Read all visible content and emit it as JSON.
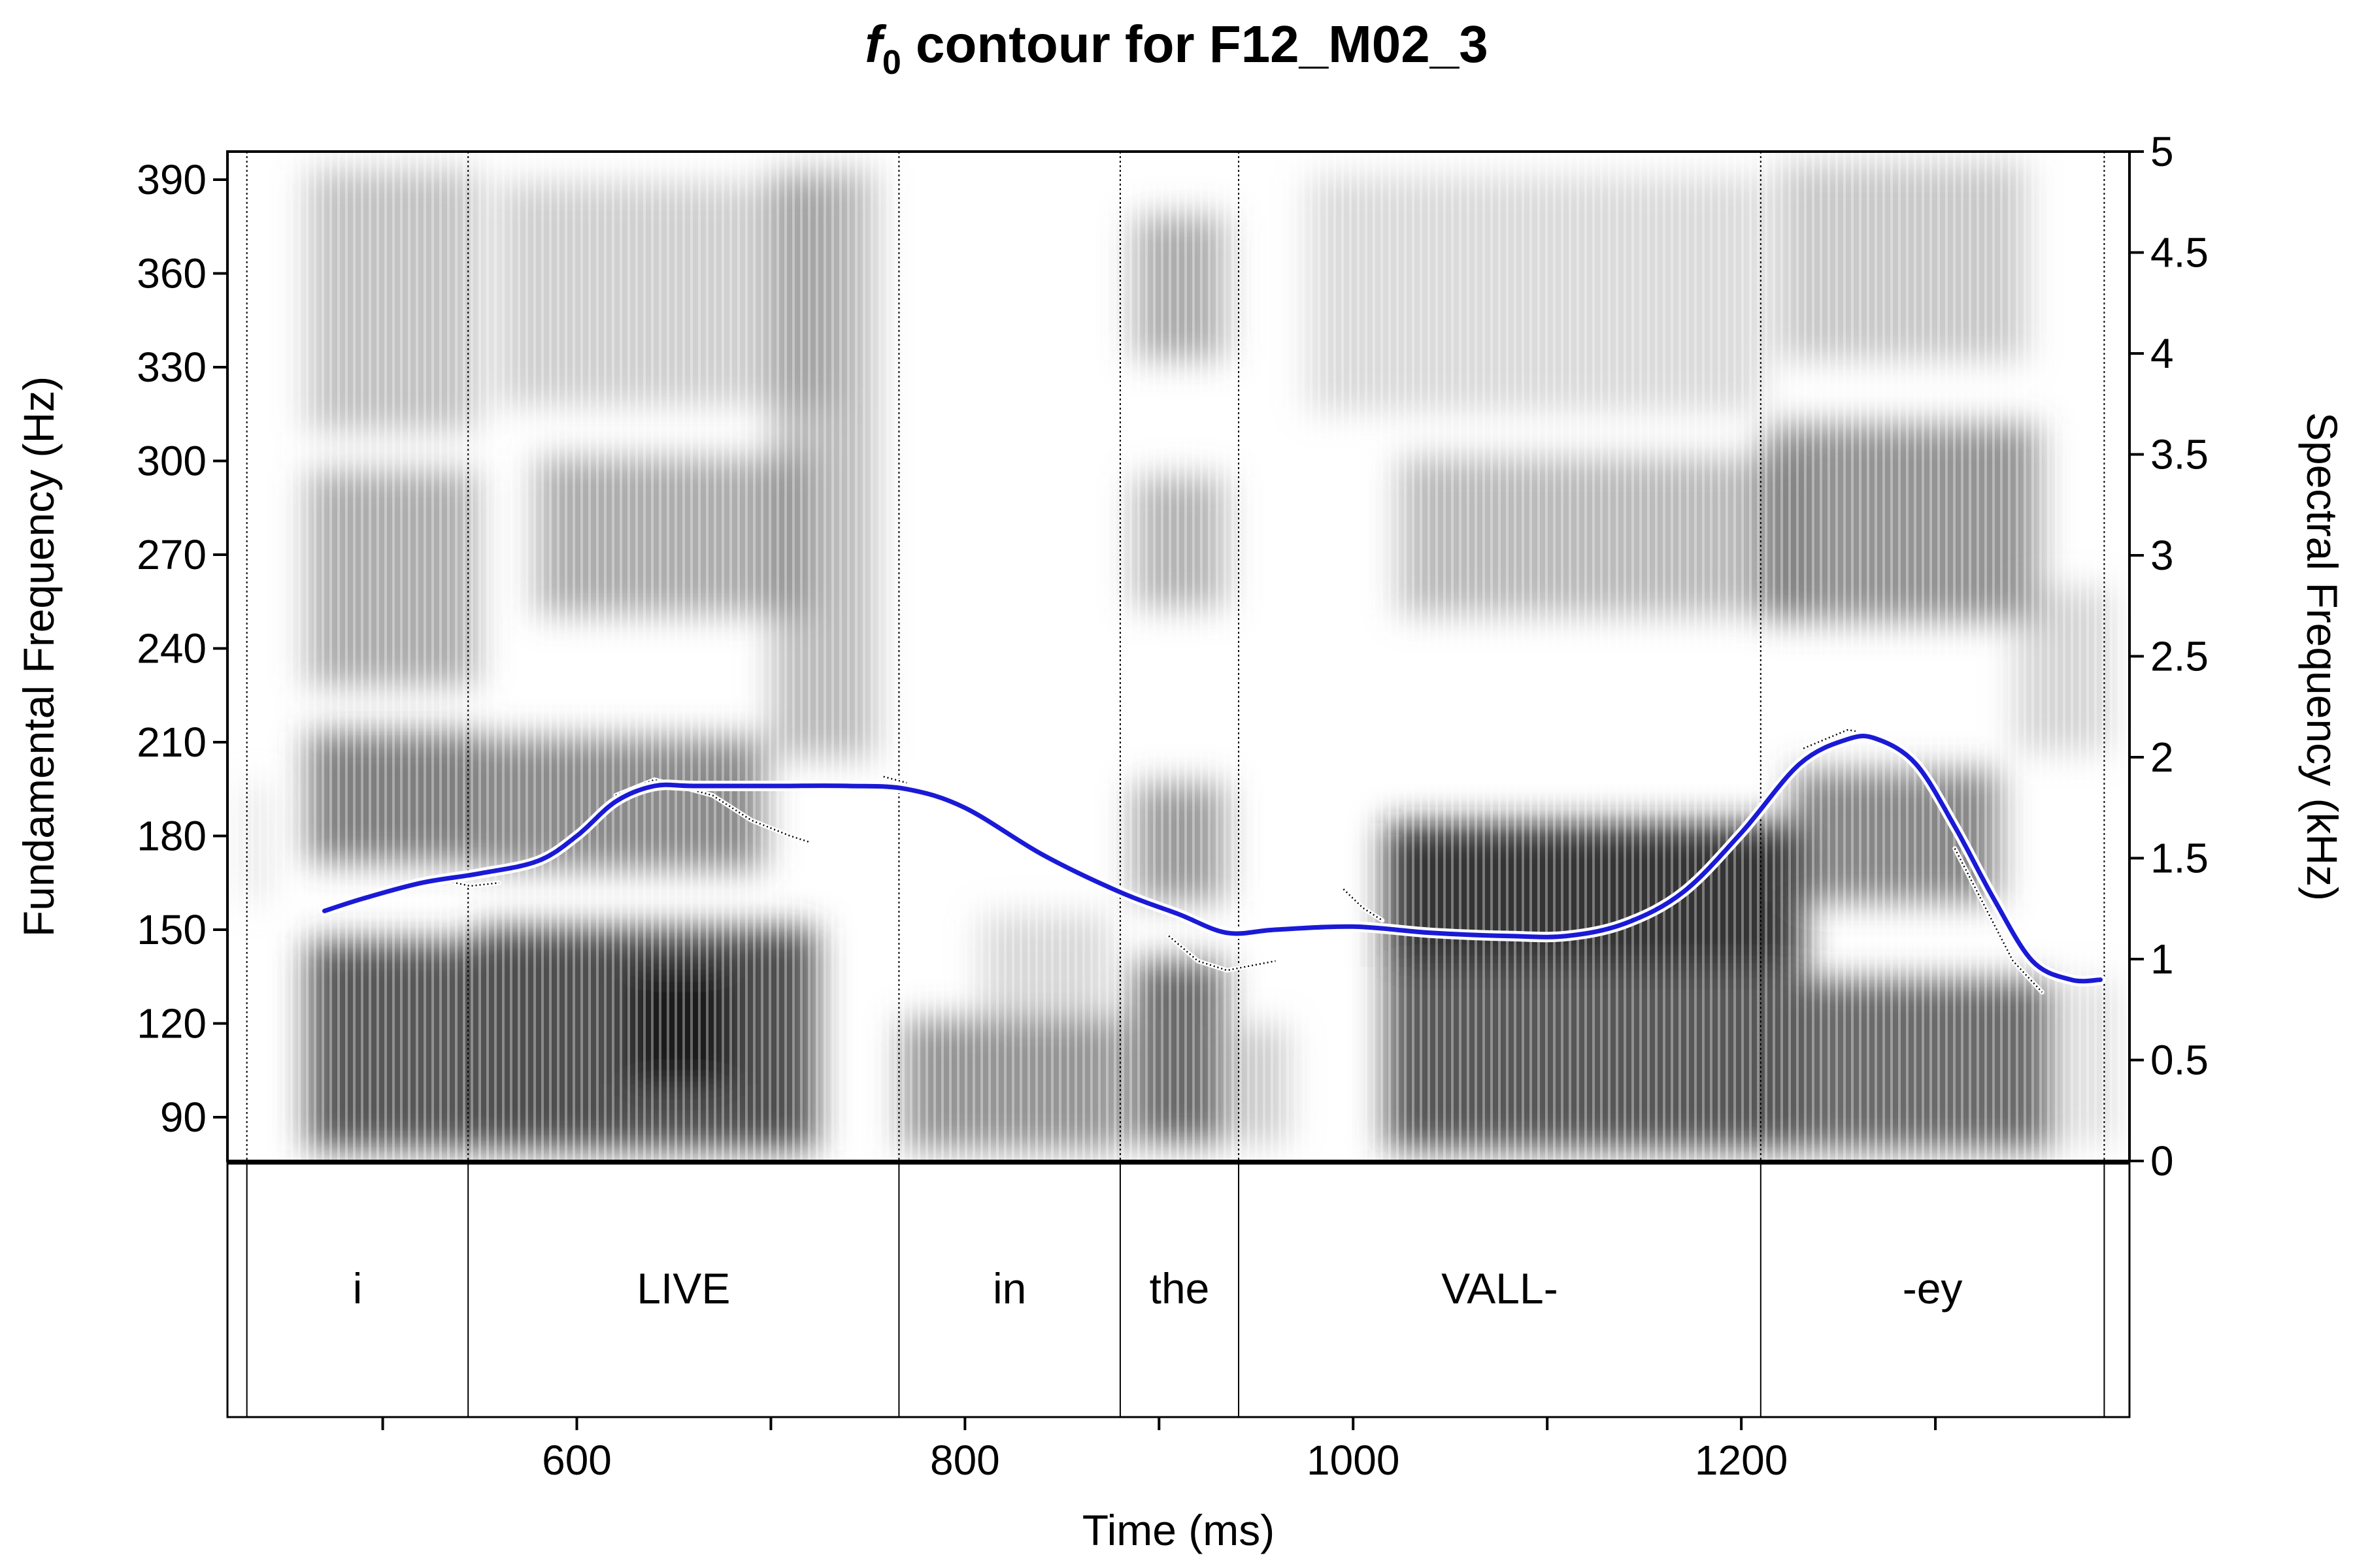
{
  "chart_data": {
    "type": "line",
    "title_italic": "f",
    "title_sub": "0",
    "title_rest": " contour for F12_M02_3",
    "xlabel": "Time (ms)",
    "ylabel_left": "Fundamental Frequency (Hz)",
    "ylabel_right": "Spectral Frequency (kHz)",
    "xlim": [
      420,
      1400
    ],
    "ylim_left": [
      76,
      399
    ],
    "ylim_right": [
      0,
      5
    ],
    "x_ticks": [
      {
        "value": 500,
        "label": ""
      },
      {
        "value": 600,
        "label": "600"
      },
      {
        "value": 700,
        "label": ""
      },
      {
        "value": 800,
        "label": "800"
      },
      {
        "value": 900,
        "label": ""
      },
      {
        "value": 1000,
        "label": "1000"
      },
      {
        "value": 1100,
        "label": ""
      },
      {
        "value": 1200,
        "label": "1200"
      },
      {
        "value": 1300,
        "label": ""
      }
    ],
    "y_ticks_left": [
      {
        "value": 90,
        "label": "90"
      },
      {
        "value": 120,
        "label": "120"
      },
      {
        "value": 150,
        "label": "150"
      },
      {
        "value": 180,
        "label": "180"
      },
      {
        "value": 210,
        "label": "210"
      },
      {
        "value": 240,
        "label": "240"
      },
      {
        "value": 270,
        "label": "270"
      },
      {
        "value": 300,
        "label": "300"
      },
      {
        "value": 330,
        "label": "330"
      },
      {
        "value": 360,
        "label": "360"
      },
      {
        "value": 390,
        "label": "390"
      }
    ],
    "y_ticks_right": [
      {
        "value": 0,
        "label": "0"
      },
      {
        "value": 0.5,
        "label": "0.5"
      },
      {
        "value": 1,
        "label": "1"
      },
      {
        "value": 1.5,
        "label": "1.5"
      },
      {
        "value": 2,
        "label": "2"
      },
      {
        "value": 2.5,
        "label": "2.5"
      },
      {
        "value": 3,
        "label": "3"
      },
      {
        "value": 3.5,
        "label": "3.5"
      },
      {
        "value": 4,
        "label": "4"
      },
      {
        "value": 4.5,
        "label": "4.5"
      },
      {
        "value": 5,
        "label": "5"
      }
    ],
    "boundaries": [
      430,
      544,
      766,
      880,
      941,
      1210,
      1387
    ],
    "intervals": [
      {
        "start": 430,
        "end": 544,
        "label": "i"
      },
      {
        "start": 544,
        "end": 766,
        "label": "LIVE"
      },
      {
        "start": 766,
        "end": 880,
        "label": "in"
      },
      {
        "start": 880,
        "end": 941,
        "label": "the"
      },
      {
        "start": 941,
        "end": 1210,
        "label": "VALL-"
      },
      {
        "start": 1210,
        "end": 1387,
        "label": "-ey"
      }
    ],
    "series": [
      {
        "color": "#1a1ad6",
        "x": [
          470,
          490,
          520,
          550,
          580,
          600,
          620,
          640,
          660,
          700,
          740,
          770,
          800,
          840,
          880,
          910,
          935,
          960,
          1000,
          1040,
          1080,
          1110,
          1140,
          1170,
          1200,
          1230,
          1255,
          1270,
          1290,
          1310,
          1330,
          1350,
          1370,
          1385
        ],
        "y": [
          156,
          160,
          165,
          168,
          172,
          180,
          191,
          196,
          196,
          196,
          196,
          195,
          189,
          174,
          162,
          155,
          149,
          150,
          151,
          149,
          148,
          148,
          152,
          162,
          181,
          203,
          211,
          211,
          203,
          183,
          160,
          140,
          134,
          134
        ]
      }
    ],
    "raw_segments": [
      {
        "x": [
          530,
          545,
          560
        ],
        "y": [
          166,
          164,
          165
        ]
      },
      {
        "x": [
          620,
          640,
          670,
          690,
          710,
          720
        ],
        "y": [
          193,
          198,
          193,
          185,
          180,
          178
        ]
      },
      {
        "x": [
          758,
          770
        ],
        "y": [
          199,
          197
        ]
      },
      {
        "x": [
          905,
          920,
          935,
          960
        ],
        "y": [
          148,
          140,
          137,
          140
        ]
      },
      {
        "x": [
          995,
          1005,
          1015
        ],
        "y": [
          163,
          157,
          153
        ]
      },
      {
        "x": [
          1232,
          1255,
          1270,
          1285
        ],
        "y": [
          208,
          214,
          212,
          207
        ]
      },
      {
        "x": [
          1310,
          1325,
          1340,
          1355
        ],
        "y": [
          176,
          158,
          140,
          130
        ]
      }
    ],
    "grid": false,
    "legend": "none",
    "background": "grayscale spectrogram"
  }
}
